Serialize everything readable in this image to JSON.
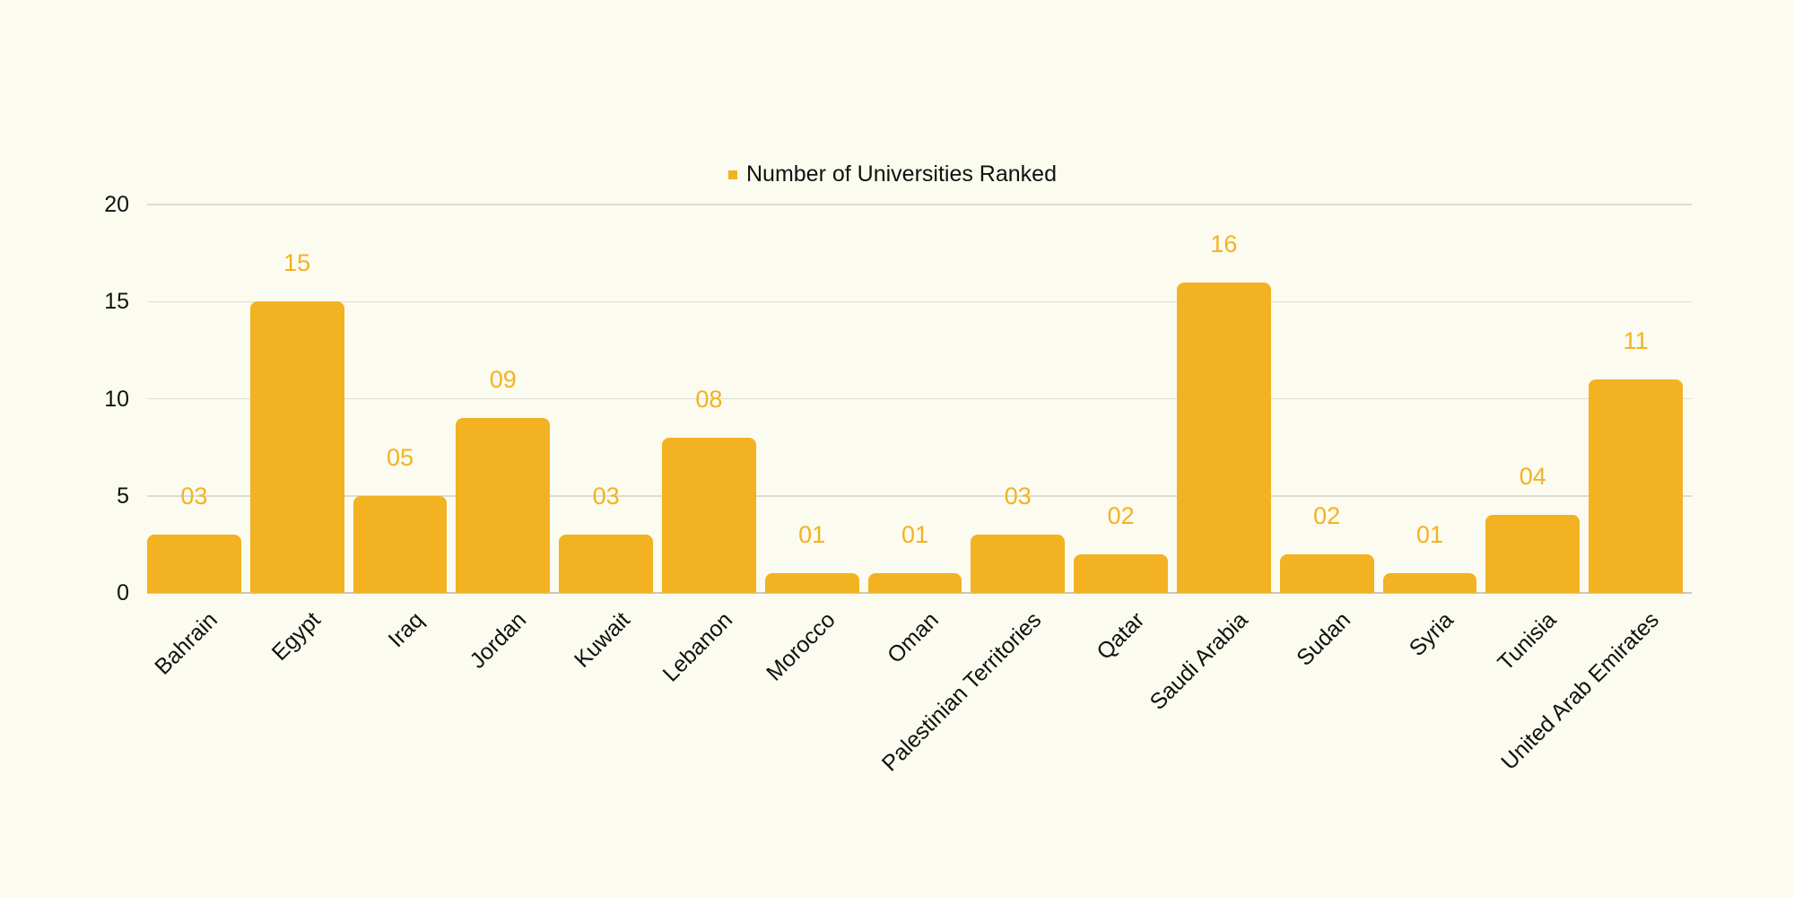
{
  "legend": {
    "label": "Number of Universities Ranked",
    "color": "#f3b222"
  },
  "y_ticks": [
    "0",
    "5",
    "10",
    "15",
    "20"
  ],
  "chart_data": {
    "type": "bar",
    "title": "",
    "xlabel": "",
    "ylabel": "",
    "ylim": [
      0,
      20
    ],
    "yticks": [
      0,
      5,
      10,
      15,
      20
    ],
    "grid": true,
    "legend_position": "top-center",
    "categories": [
      "Bahrain",
      "Egypt",
      "Iraq",
      "Jordan",
      "Kuwait",
      "Lebanon",
      "Morocco",
      "Oman",
      "Palestinian Territories",
      "Qatar",
      "Saudi Arabia",
      "Sudan",
      "Syria",
      "Tunisia",
      "United Arab Emirates"
    ],
    "series": [
      {
        "name": "Number of Universities Ranked",
        "color": "#f3b222",
        "values": [
          3,
          15,
          5,
          9,
          3,
          8,
          1,
          1,
          3,
          2,
          16,
          2,
          1,
          4,
          11
        ],
        "data_labels": [
          "03",
          "15",
          "05",
          "09",
          "03",
          "08",
          "01",
          "01",
          "03",
          "02",
          "16",
          "02",
          "01",
          "04",
          "11"
        ]
      }
    ]
  }
}
